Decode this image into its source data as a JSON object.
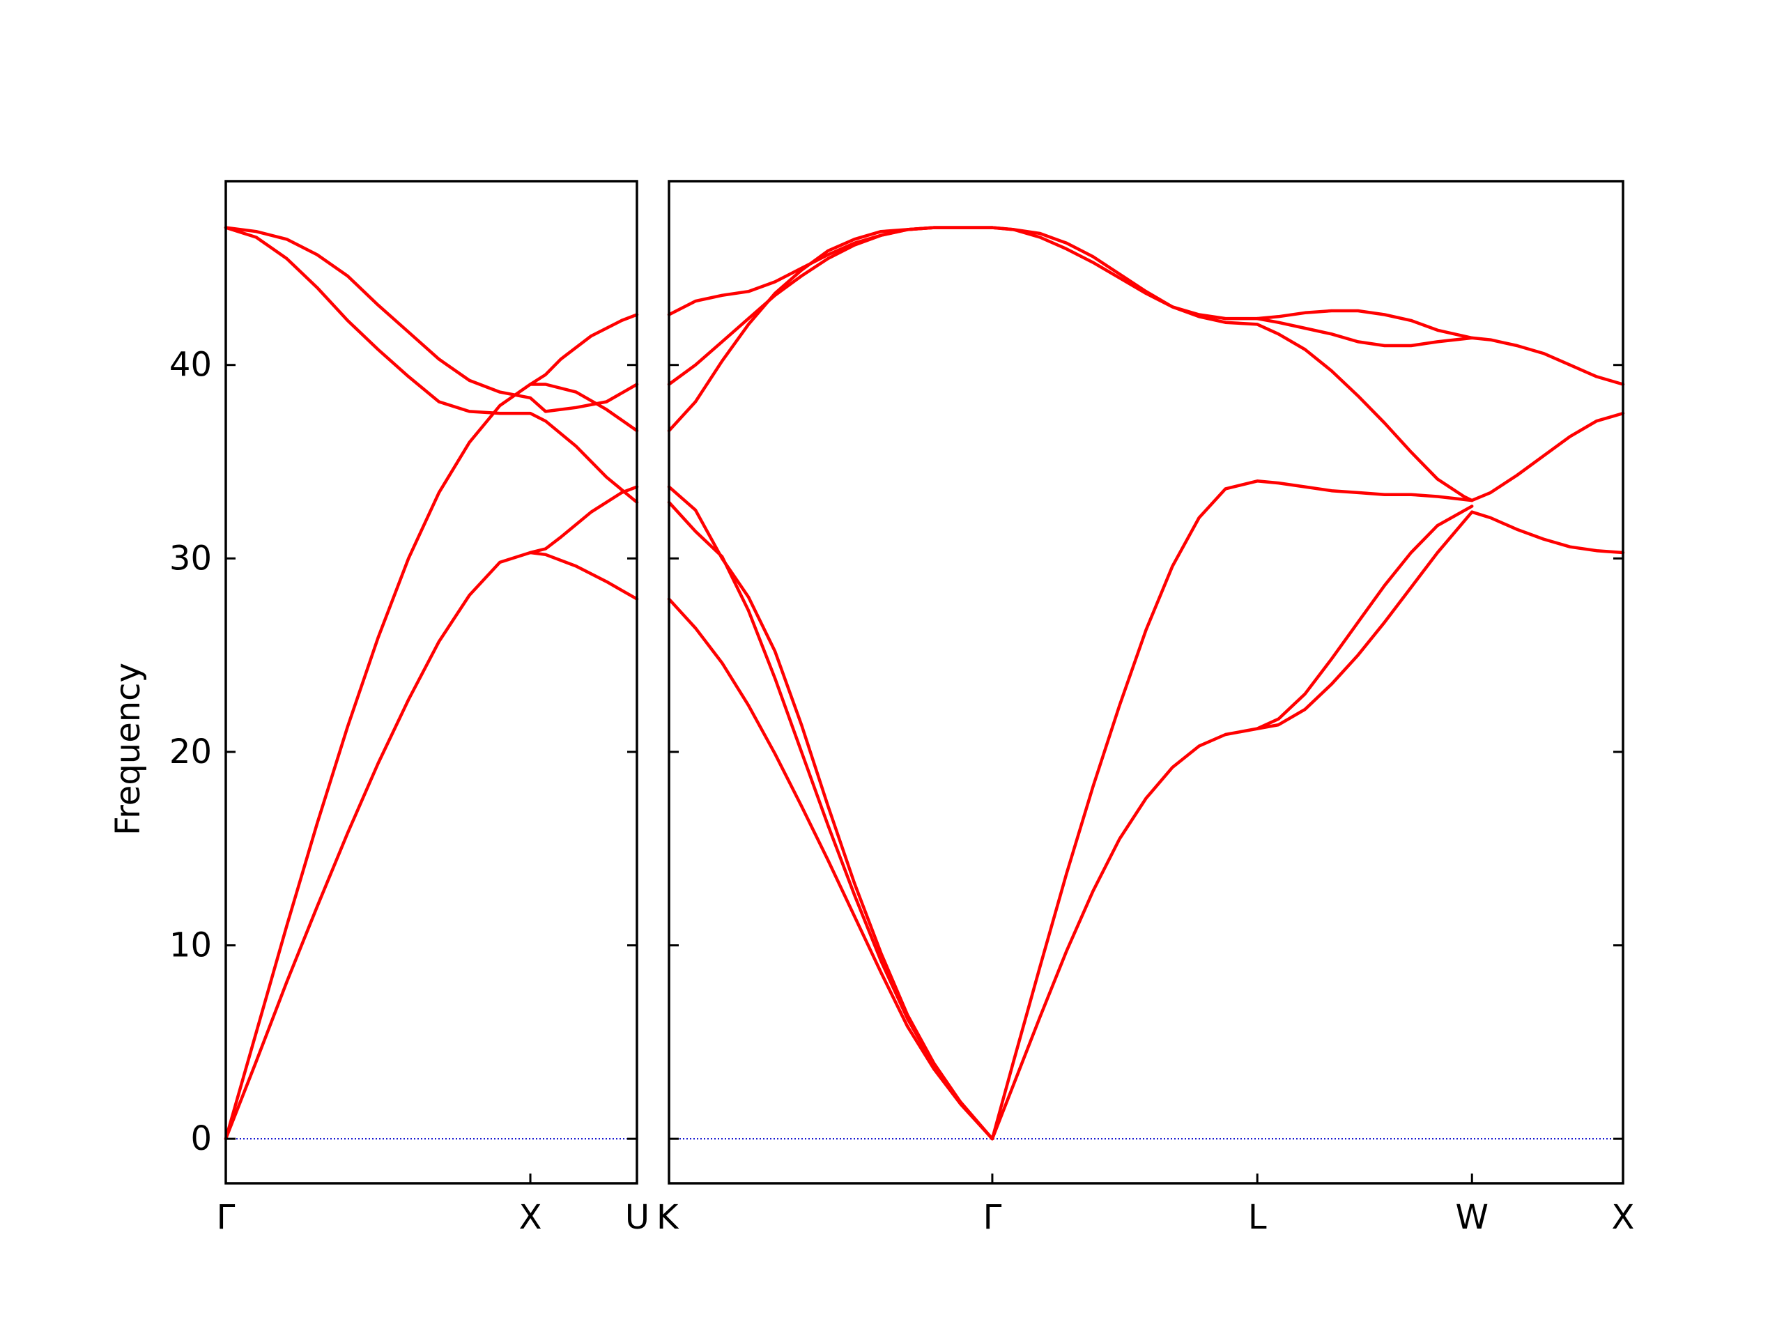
{
  "chart_data": {
    "type": "line",
    "title": "",
    "ylabel": "Frequency",
    "ylim": [
      -2.3,
      49.5
    ],
    "yticks": [
      0,
      10,
      20,
      30,
      40
    ],
    "grid": false,
    "series_color": "#ff0000",
    "zero_line_color": "#0000cc",
    "panels": [
      {
        "xlim": [
          0,
          1.35
        ],
        "ticks": [
          {
            "pos": 0,
            "label": "Γ"
          },
          {
            "pos": 1.0,
            "label": "X"
          },
          {
            "pos": 1.35,
            "label": "U"
          }
        ],
        "bands": [
          [
            [
              0,
              0
            ],
            [
              0.1,
              4.0
            ],
            [
              0.2,
              8.1
            ],
            [
              0.3,
              12.0
            ],
            [
              0.4,
              15.8
            ],
            [
              0.5,
              19.4
            ],
            [
              0.6,
              22.7
            ],
            [
              0.7,
              25.7
            ],
            [
              0.8,
              28.1
            ],
            [
              0.9,
              29.8
            ],
            [
              1.0,
              30.3
            ],
            [
              1.05,
              30.2
            ],
            [
              1.15,
              29.6
            ],
            [
              1.25,
              28.8
            ],
            [
              1.35,
              27.9
            ]
          ],
          [
            [
              0,
              0
            ],
            [
              0.1,
              5.5
            ],
            [
              0.2,
              11.0
            ],
            [
              0.3,
              16.3
            ],
            [
              0.4,
              21.3
            ],
            [
              0.5,
              25.9
            ],
            [
              0.6,
              30.0
            ],
            [
              0.7,
              33.4
            ],
            [
              0.8,
              36.0
            ],
            [
              0.9,
              37.9
            ],
            [
              1.0,
              39.0
            ],
            [
              1.05,
              39.0
            ],
            [
              1.15,
              38.6
            ],
            [
              1.25,
              37.7
            ],
            [
              1.35,
              36.6
            ]
          ],
          [
            [
              0,
              47.1
            ],
            [
              0.1,
              46.6
            ],
            [
              0.2,
              45.5
            ],
            [
              0.3,
              44.0
            ],
            [
              0.4,
              42.3
            ],
            [
              0.5,
              40.8
            ],
            [
              0.6,
              39.4
            ],
            [
              0.7,
              38.1
            ],
            [
              0.8,
              37.6
            ],
            [
              0.9,
              37.5
            ],
            [
              1.0,
              37.5
            ],
            [
              1.05,
              37.1
            ],
            [
              1.15,
              35.8
            ],
            [
              1.25,
              34.2
            ],
            [
              1.35,
              32.9
            ]
          ],
          [
            [
              0,
              47.1
            ],
            [
              0.1,
              46.9
            ],
            [
              0.2,
              46.5
            ],
            [
              0.3,
              45.7
            ],
            [
              0.4,
              44.6
            ],
            [
              0.5,
              43.1
            ],
            [
              0.6,
              41.7
            ],
            [
              0.7,
              40.3
            ],
            [
              0.8,
              39.2
            ],
            [
              0.9,
              38.6
            ],
            [
              1.0,
              38.3
            ],
            [
              1.05,
              37.6
            ],
            [
              1.15,
              37.8
            ],
            [
              1.25,
              38.1
            ],
            [
              1.35,
              39.0
            ]
          ],
          [
            [
              1.0,
              30.3
            ],
            [
              1.05,
              30.5
            ],
            [
              1.1,
              31.1
            ],
            [
              1.2,
              32.4
            ],
            [
              1.3,
              33.4
            ],
            [
              1.35,
              33.7
            ]
          ],
          [
            [
              1.0,
              39.0
            ],
            [
              1.05,
              39.5
            ],
            [
              1.1,
              40.3
            ],
            [
              1.2,
              41.5
            ],
            [
              1.3,
              42.3
            ],
            [
              1.35,
              42.6
            ]
          ]
        ]
      },
      {
        "xlim": [
          0,
          3.6
        ],
        "ticks": [
          {
            "pos": 0,
            "label": "K"
          },
          {
            "pos": 1.22,
            "label": "Γ"
          },
          {
            "pos": 2.22,
            "label": "L"
          },
          {
            "pos": 3.03,
            "label": "W"
          },
          {
            "pos": 3.6,
            "label": "X"
          }
        ],
        "bands": [
          [
            [
              0,
              27.9
            ],
            [
              0.1,
              26.4
            ],
            [
              0.2,
              24.6
            ],
            [
              0.3,
              22.4
            ],
            [
              0.4,
              19.9
            ],
            [
              0.5,
              17.2
            ],
            [
              0.6,
              14.4
            ],
            [
              0.7,
              11.5
            ],
            [
              0.8,
              8.6
            ],
            [
              0.9,
              5.8
            ],
            [
              1.0,
              3.6
            ],
            [
              1.1,
              1.8
            ],
            [
              1.22,
              0
            ]
          ],
          [
            [
              0,
              32.9
            ],
            [
              0.1,
              31.4
            ],
            [
              0.2,
              30.1
            ],
            [
              0.3,
              27.3
            ],
            [
              0.4,
              23.8
            ],
            [
              0.5,
              20.0
            ],
            [
              0.6,
              16.2
            ],
            [
              0.7,
              12.6
            ],
            [
              0.8,
              9.2
            ],
            [
              0.9,
              6.2
            ],
            [
              1.0,
              3.8
            ],
            [
              1.1,
              1.9
            ],
            [
              1.22,
              0
            ]
          ],
          [
            [
              0,
              33.7
            ],
            [
              0.1,
              32.5
            ],
            [
              0.2,
              30.0
            ],
            [
              0.3,
              28.0
            ],
            [
              0.4,
              25.2
            ],
            [
              0.5,
              21.4
            ],
            [
              0.6,
              17.2
            ],
            [
              0.7,
              13.2
            ],
            [
              0.8,
              9.6
            ],
            [
              0.9,
              6.4
            ],
            [
              1.0,
              3.9
            ],
            [
              1.1,
              1.9
            ],
            [
              1.22,
              0
            ]
          ],
          [
            [
              0,
              36.6
            ],
            [
              0.1,
              38.1
            ],
            [
              0.2,
              40.2
            ],
            [
              0.3,
              42.1
            ],
            [
              0.4,
              43.7
            ],
            [
              0.5,
              44.9
            ],
            [
              0.6,
              45.9
            ],
            [
              0.7,
              46.5
            ],
            [
              0.8,
              46.9
            ],
            [
              0.9,
              47.0
            ],
            [
              1.0,
              47.1
            ],
            [
              1.1,
              47.1
            ],
            [
              1.22,
              47.1
            ]
          ],
          [
            [
              0,
              39.0
            ],
            [
              0.1,
              40.0
            ],
            [
              0.2,
              41.2
            ],
            [
              0.3,
              42.4
            ],
            [
              0.4,
              43.6
            ],
            [
              0.5,
              44.6
            ],
            [
              0.6,
              45.5
            ],
            [
              0.7,
              46.2
            ],
            [
              0.8,
              46.7
            ],
            [
              0.9,
              47.0
            ],
            [
              1.0,
              47.1
            ],
            [
              1.1,
              47.1
            ],
            [
              1.22,
              47.1
            ]
          ],
          [
            [
              0,
              42.6
            ],
            [
              0.1,
              43.3
            ],
            [
              0.2,
              43.6
            ],
            [
              0.3,
              43.8
            ],
            [
              0.4,
              44.3
            ],
            [
              0.5,
              45.0
            ],
            [
              0.6,
              45.7
            ],
            [
              0.7,
              46.3
            ],
            [
              0.8,
              46.7
            ],
            [
              0.9,
              47.0
            ],
            [
              1.0,
              47.1
            ],
            [
              1.1,
              47.1
            ],
            [
              1.22,
              47.1
            ]
          ],
          [
            [
              1.22,
              0
            ],
            [
              1.3,
              2.8
            ],
            [
              1.4,
              6.3
            ],
            [
              1.5,
              9.7
            ],
            [
              1.6,
              12.8
            ],
            [
              1.7,
              15.5
            ],
            [
              1.8,
              17.6
            ],
            [
              1.9,
              19.2
            ],
            [
              2.0,
              20.3
            ],
            [
              2.1,
              20.9
            ],
            [
              2.22,
              21.2
            ],
            [
              2.3,
              21.4
            ],
            [
              2.4,
              22.2
            ],
            [
              2.5,
              23.5
            ],
            [
              2.6,
              25.0
            ],
            [
              2.7,
              26.7
            ],
            [
              2.8,
              28.5
            ],
            [
              2.9,
              30.3
            ],
            [
              3.03,
              32.4
            ],
            [
              3.1,
              32.1
            ],
            [
              3.2,
              31.5
            ],
            [
              3.3,
              31.0
            ],
            [
              3.4,
              30.6
            ],
            [
              3.5,
              30.4
            ],
            [
              3.6,
              30.3
            ]
          ],
          [
            [
              1.22,
              0
            ],
            [
              1.3,
              4.0
            ],
            [
              1.4,
              8.9
            ],
            [
              1.5,
              13.7
            ],
            [
              1.6,
              18.2
            ],
            [
              1.7,
              22.4
            ],
            [
              1.8,
              26.3
            ],
            [
              1.9,
              29.6
            ],
            [
              2.0,
              32.1
            ],
            [
              2.1,
              33.6
            ],
            [
              2.22,
              34.0
            ],
            [
              2.3,
              33.9
            ],
            [
              2.4,
              33.7
            ],
            [
              2.5,
              33.5
            ],
            [
              2.6,
              33.4
            ],
            [
              2.7,
              33.3
            ],
            [
              2.8,
              33.3
            ],
            [
              2.9,
              33.2
            ],
            [
              3.03,
              33.0
            ],
            [
              3.1,
              33.4
            ],
            [
              3.2,
              34.3
            ],
            [
              3.3,
              35.3
            ],
            [
              3.4,
              36.3
            ],
            [
              3.5,
              37.1
            ],
            [
              3.6,
              37.5
            ]
          ],
          [
            [
              2.22,
              21.2
            ],
            [
              2.3,
              21.7
            ],
            [
              2.4,
              23.0
            ],
            [
              2.5,
              24.8
            ],
            [
              2.6,
              26.7
            ],
            [
              2.7,
              28.6
            ],
            [
              2.8,
              30.3
            ],
            [
              2.9,
              31.7
            ],
            [
              3.03,
              32.7
            ]
          ],
          [
            [
              1.22,
              47.1
            ],
            [
              1.3,
              47.0
            ],
            [
              1.4,
              46.6
            ],
            [
              1.5,
              46.0
            ],
            [
              1.6,
              45.3
            ],
            [
              1.7,
              44.5
            ],
            [
              1.8,
              43.7
            ],
            [
              1.9,
              43.0
            ],
            [
              2.0,
              42.5
            ],
            [
              2.1,
              42.2
            ],
            [
              2.22,
              42.1
            ],
            [
              2.3,
              41.6
            ],
            [
              2.4,
              40.8
            ],
            [
              2.5,
              39.7
            ],
            [
              2.6,
              38.4
            ],
            [
              2.7,
              37.0
            ],
            [
              2.8,
              35.5
            ],
            [
              2.9,
              34.1
            ],
            [
              3.0,
              33.2
            ],
            [
              3.03,
              33.0
            ]
          ],
          [
            [
              1.22,
              47.1
            ],
            [
              1.3,
              47.0
            ],
            [
              1.4,
              46.8
            ],
            [
              1.5,
              46.3
            ],
            [
              1.6,
              45.6
            ],
            [
              1.7,
              44.7
            ],
            [
              1.8,
              43.8
            ],
            [
              1.9,
              43.0
            ],
            [
              2.0,
              42.6
            ],
            [
              2.1,
              42.4
            ],
            [
              2.22,
              42.4
            ],
            [
              2.3,
              42.2
            ],
            [
              2.4,
              41.9
            ],
            [
              2.5,
              41.6
            ],
            [
              2.6,
              41.2
            ],
            [
              2.7,
              41.0
            ],
            [
              2.8,
              41.0
            ],
            [
              2.9,
              41.2
            ],
            [
              3.03,
              41.4
            ],
            [
              3.1,
              41.3
            ],
            [
              3.2,
              41.0
            ],
            [
              3.3,
              40.6
            ],
            [
              3.4,
              40.0
            ],
            [
              3.5,
              39.4
            ],
            [
              3.6,
              39.0
            ]
          ],
          [
            [
              2.22,
              42.4
            ],
            [
              2.3,
              42.5
            ],
            [
              2.4,
              42.7
            ],
            [
              2.5,
              42.8
            ],
            [
              2.6,
              42.8
            ],
            [
              2.7,
              42.6
            ],
            [
              2.8,
              42.3
            ],
            [
              2.9,
              41.8
            ],
            [
              3.03,
              41.4
            ]
          ]
        ]
      }
    ]
  }
}
